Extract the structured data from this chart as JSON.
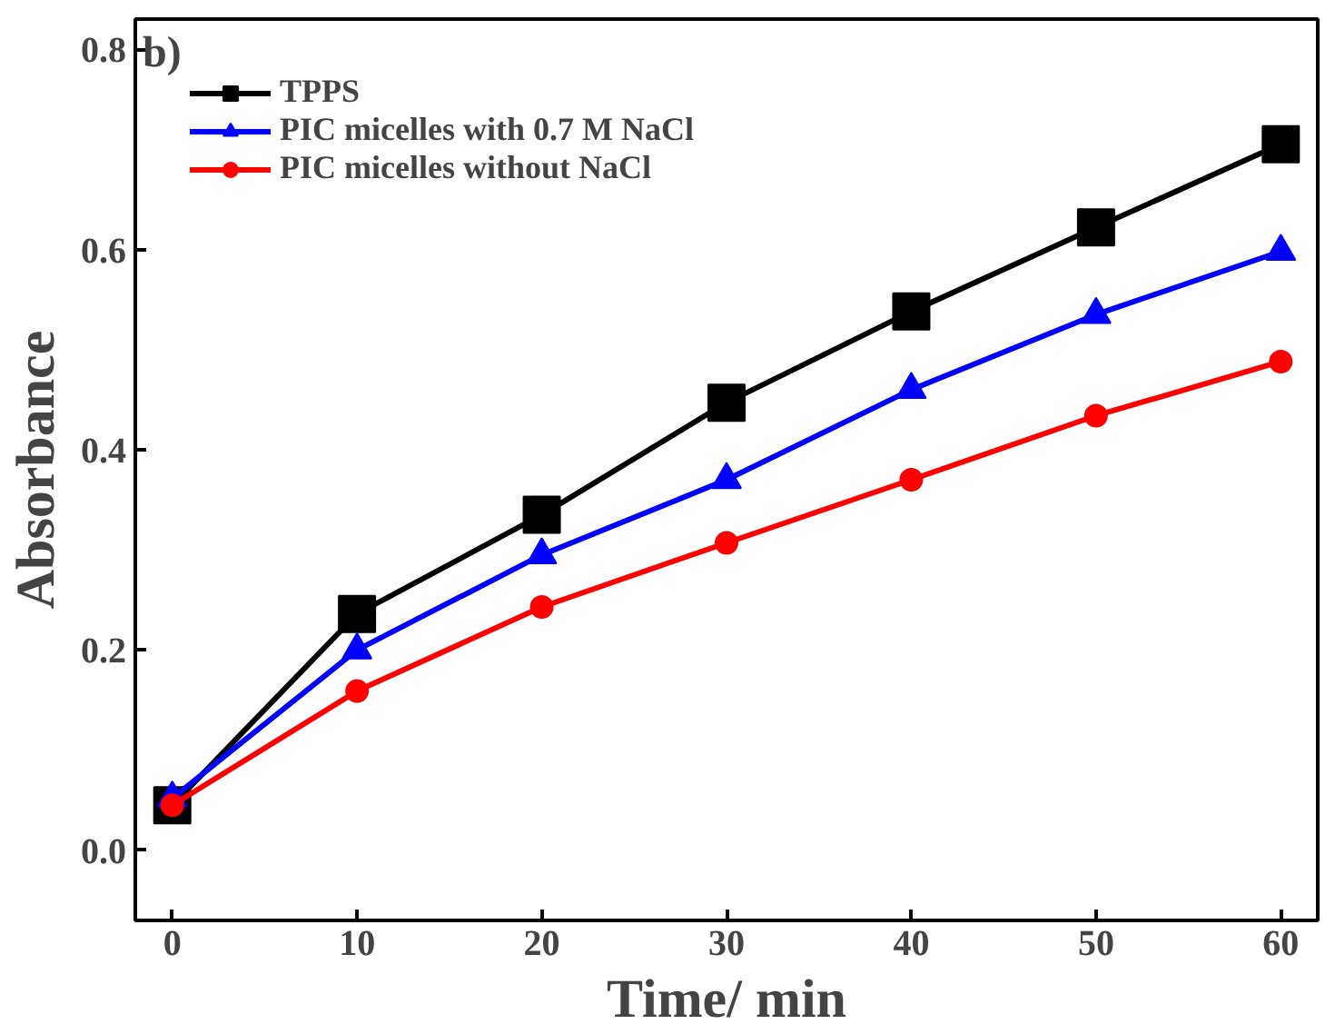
{
  "chart_data": {
    "type": "line",
    "xlabel": "Time/ min",
    "ylabel": "Absorbance",
    "annotations": [
      "b)"
    ],
    "x": [
      0,
      10,
      20,
      30,
      40,
      50,
      60
    ],
    "series": [
      {
        "name": "TPPS",
        "color": "#000000",
        "marker": "square",
        "values": [
          0.045,
          0.236,
          0.335,
          0.447,
          0.538,
          0.622,
          0.705
        ]
      },
      {
        "name": "PIC micelles with 0.7 M NaCl",
        "color": "#0000ff",
        "marker": "triangle",
        "values": [
          0.052,
          0.2,
          0.295,
          0.37,
          0.46,
          0.535,
          0.598
        ]
      },
      {
        "name": "PIC micelles without NaCl",
        "color": "#ff0000",
        "marker": "circle",
        "values": [
          0.045,
          0.159,
          0.243,
          0.307,
          0.37,
          0.434,
          0.488
        ]
      }
    ],
    "xlim": [
      -2,
      62
    ],
    "ylim": [
      -0.07,
      0.83
    ],
    "xticks": [
      0,
      10,
      20,
      30,
      40,
      50,
      60
    ],
    "yticks": [
      {
        "value": 0,
        "label": "0.0"
      },
      {
        "value": 0.2,
        "label": "0.2"
      },
      {
        "value": 0.4,
        "label": "0.4"
      },
      {
        "value": 0.6,
        "label": "0.6"
      },
      {
        "value": 0.8,
        "label": "0.8"
      }
    ],
    "grid": false,
    "legend": "top left",
    "line_style": "solid"
  }
}
